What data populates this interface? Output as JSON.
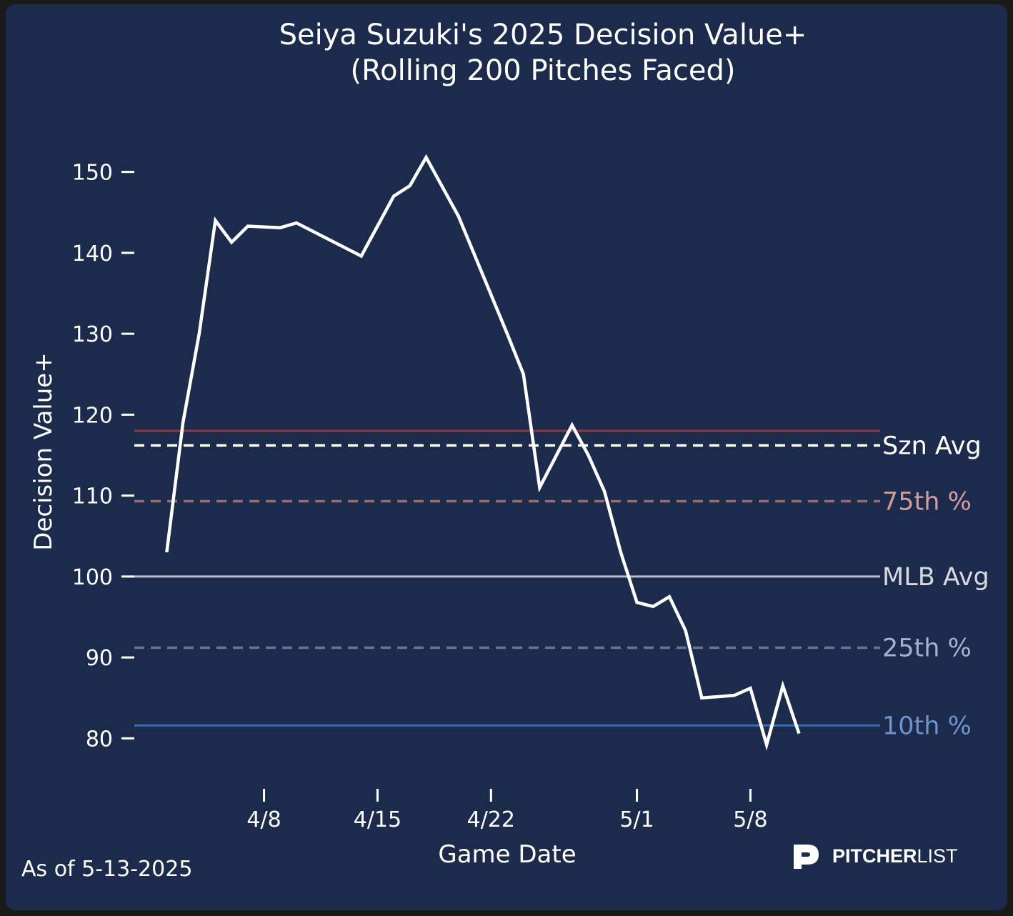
{
  "chart_data": {
    "type": "line",
    "title_line1": "Seiya Suzuki's 2025 Decision Value+",
    "title_line2": "(Rolling 200 Pitches Faced)",
    "xlabel": "Game Date",
    "ylabel": "Decision Value+",
    "ylim": [
      75,
      158
    ],
    "xlim": [
      "2025-03-31",
      "2025-05-16"
    ],
    "yticks": [
      80,
      90,
      100,
      110,
      120,
      130,
      140,
      150
    ],
    "xticks": [
      {
        "date": "2025-04-08",
        "label": "4/8"
      },
      {
        "date": "2025-04-15",
        "label": "4/15"
      },
      {
        "date": "2025-04-22",
        "label": "4/22"
      },
      {
        "date": "2025-05-01",
        "label": "5/1"
      },
      {
        "date": "2025-05-08",
        "label": "5/8"
      }
    ],
    "grid": false,
    "series": [
      {
        "color": "#ffffff",
        "points": [
          {
            "x": "2025-04-02",
            "y": 103
          },
          {
            "x": "2025-04-03",
            "y": 119
          },
          {
            "x": "2025-04-04",
            "y": 130
          },
          {
            "x": "2025-04-05",
            "y": 144
          },
          {
            "x": "2025-04-06",
            "y": 141.3
          },
          {
            "x": "2025-04-07",
            "y": 143.3
          },
          {
            "x": "2025-04-09",
            "y": 143.1
          },
          {
            "x": "2025-04-10",
            "y": 143.7
          },
          {
            "x": "2025-04-14",
            "y": 139.6
          },
          {
            "x": "2025-04-16",
            "y": 147
          },
          {
            "x": "2025-04-17",
            "y": 148.3
          },
          {
            "x": "2025-04-18",
            "y": 151.8
          },
          {
            "x": "2025-04-20",
            "y": 144.5
          },
          {
            "x": "2025-04-23",
            "y": 130
          },
          {
            "x": "2025-04-24",
            "y": 125
          },
          {
            "x": "2025-04-25",
            "y": 111
          },
          {
            "x": "2025-04-27",
            "y": 118.7
          },
          {
            "x": "2025-04-28",
            "y": 115
          },
          {
            "x": "2025-04-29",
            "y": 110.5
          },
          {
            "x": "2025-04-30",
            "y": 103
          },
          {
            "x": "2025-05-01",
            "y": 96.8
          },
          {
            "x": "2025-05-02",
            "y": 96.3
          },
          {
            "x": "2025-05-03",
            "y": 97.5
          },
          {
            "x": "2025-05-04",
            "y": 93.3
          },
          {
            "x": "2025-05-05",
            "y": 85
          },
          {
            "x": "2025-05-07",
            "y": 85.3
          },
          {
            "x": "2025-05-08",
            "y": 86.2
          },
          {
            "x": "2025-05-09",
            "y": 79.2
          },
          {
            "x": "2025-05-10",
            "y": 86.5
          },
          {
            "x": "2025-05-11",
            "y": 80.6
          }
        ]
      }
    ],
    "reference_lines": [
      {
        "name": "Szn Avg",
        "y": 116.2,
        "color": "#ffffff",
        "label_color": "#ffffff",
        "dashed": true
      },
      {
        "name": "",
        "y": 118,
        "color": "#8a3a3e",
        "label_color": "",
        "dashed": false
      },
      {
        "name": "75th %",
        "y": 109.3,
        "color": "#8e6f78",
        "label_color": "#d19c9c",
        "dashed": true
      },
      {
        "name": "MLB Avg",
        "y": 100,
        "color": "#b9bec9",
        "label_color": "#d6d9e0",
        "dashed": false
      },
      {
        "name": "25th %",
        "y": 91.2,
        "color": "#6a7590",
        "label_color": "#a6b2cd",
        "dashed": true
      },
      {
        "name": "10th %",
        "y": 81.6,
        "color": "#3d6db0",
        "label_color": "#6f93cd",
        "dashed": false
      }
    ]
  },
  "footnote": "As of 5-13-2025",
  "logo": {
    "text_bold": "PITCHER",
    "text_light": "LIST"
  }
}
